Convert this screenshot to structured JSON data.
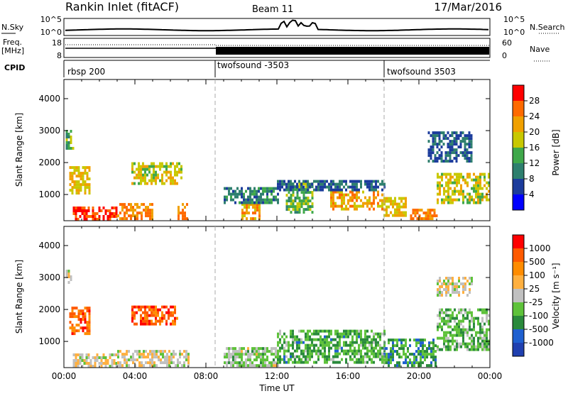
{
  "header": {
    "site": "Rankin Inlet (fitACF)",
    "beam": "Beam 11",
    "date": "17/Mar/2016"
  },
  "noise_panel": {
    "left_label": "N.Sky",
    "right_label": "N.Search",
    "ticks": [
      "10^5",
      "10^0"
    ]
  },
  "freq_panel": {
    "left_label": "Freq.",
    "left_unit": "[MHz]",
    "left_ticks": [
      "18",
      "8"
    ],
    "right_label": "Nave",
    "right_ticks": [
      "60",
      "0"
    ]
  },
  "cpid_panel": {
    "label": "CPID",
    "segments": [
      {
        "name": "rbsp 200",
        "start_hour": 0.0
      },
      {
        "name": "twofsound -3503",
        "start_hour": 8.5
      },
      {
        "name": "twofsound 3503",
        "start_hour": 18.0
      }
    ]
  },
  "colors": {
    "power_scale": [
      "#0000ff",
      "#1c3c9c",
      "#2e7f6e",
      "#3fa84a",
      "#c8c800",
      "#f0a000",
      "#ff6a00",
      "#ff0000"
    ],
    "velocity_scale": [
      "#2040b0",
      "#1f60d0",
      "#2a8a3c",
      "#5ec23a",
      "#c0c0c0",
      "#ffb040",
      "#ff8c00",
      "#ff5a00",
      "#ff0000"
    ]
  },
  "chart_data": [
    {
      "type": "heatmap",
      "title": "",
      "xlabel": "",
      "ylabel": "Slant Range [km]",
      "xlim": [
        0,
        24
      ],
      "ylim": [
        180,
        4600
      ],
      "yticks": [
        "1000",
        "2000",
        "3000",
        "4000"
      ],
      "colorbar_label": "Power [dB]",
      "colorbar_ticks": [
        "28",
        "24",
        "20",
        "16",
        "12",
        "8",
        "4"
      ],
      "colorbar_range": [
        0,
        32
      ],
      "regions": [
        {
          "x": [
            0.3,
            1.5
          ],
          "y": [
            1000,
            1800
          ],
          "value": 20
        },
        {
          "x": [
            0.1,
            0.5
          ],
          "y": [
            2400,
            3000
          ],
          "value": 14
        },
        {
          "x": [
            3.8,
            6.6
          ],
          "y": [
            1300,
            2000
          ],
          "value": 18
        },
        {
          "x": [
            0.5,
            3.0
          ],
          "y": [
            180,
            600
          ],
          "value": 28
        },
        {
          "x": [
            3.0,
            5.0
          ],
          "y": [
            200,
            700
          ],
          "value": 24
        },
        {
          "x": [
            6.4,
            7.0
          ],
          "y": [
            200,
            700
          ],
          "value": 24
        },
        {
          "x": [
            10.0,
            11.0
          ],
          "y": [
            200,
            700
          ],
          "value": 22
        },
        {
          "x": [
            12.5,
            14.0
          ],
          "y": [
            400,
            1300
          ],
          "value": 14
        },
        {
          "x": [
            15.0,
            18.0
          ],
          "y": [
            500,
            1100
          ],
          "value": 22
        },
        {
          "x": [
            18.0,
            19.3
          ],
          "y": [
            300,
            900
          ],
          "value": 20
        },
        {
          "x": [
            19.5,
            21.0
          ],
          "y": [
            200,
            500
          ],
          "value": 24
        },
        {
          "x": [
            21.0,
            24.0
          ],
          "y": [
            700,
            1600
          ],
          "value": 18
        },
        {
          "x": [
            9.0,
            12.0
          ],
          "y": [
            700,
            1200
          ],
          "value": 10
        },
        {
          "x": [
            12.0,
            18.0
          ],
          "y": [
            1100,
            1400
          ],
          "value": 8
        },
        {
          "x": [
            20.5,
            23.0
          ],
          "y": [
            2000,
            2900
          ],
          "value": 8
        }
      ]
    },
    {
      "type": "heatmap",
      "title": "",
      "xlabel": "Time UT",
      "ylabel": "Slant Range [km]",
      "xlim": [
        0,
        24
      ],
      "ylim": [
        180,
        4600
      ],
      "xticks": [
        "00:00",
        "04:00",
        "08:00",
        "12:00",
        "16:00",
        "20:00",
        "00:00"
      ],
      "yticks": [
        "1000",
        "2000",
        "3000",
        "4000"
      ],
      "colorbar_label": "Velocity [m s⁻¹]",
      "colorbar_ticks": [
        "1000",
        "500",
        "100",
        "25",
        "-25",
        "-100",
        "-500",
        "-1000"
      ],
      "colorbar_range": [
        -1200,
        1200
      ],
      "regions": [
        {
          "x": [
            0.3,
            1.5
          ],
          "y": [
            1200,
            2000
          ],
          "value": 700
        },
        {
          "x": [
            0.1,
            0.4
          ],
          "y": [
            2800,
            3200
          ],
          "value": 0
        },
        {
          "x": [
            3.8,
            6.4
          ],
          "y": [
            1500,
            2100
          ],
          "value": 800
        },
        {
          "x": [
            0.5,
            3.0
          ],
          "y": [
            180,
            600
          ],
          "value": 100
        },
        {
          "x": [
            3.0,
            7.0
          ],
          "y": [
            200,
            700
          ],
          "value": 60
        },
        {
          "x": [
            9.0,
            12.0
          ],
          "y": [
            200,
            800
          ],
          "value": -150
        },
        {
          "x": [
            12.0,
            18.0
          ],
          "y": [
            300,
            1300
          ],
          "value": -400
        },
        {
          "x": [
            18.0,
            21.0
          ],
          "y": [
            200,
            1000
          ],
          "value": -500
        },
        {
          "x": [
            21.0,
            24.0
          ],
          "y": [
            700,
            2000
          ],
          "value": -300
        },
        {
          "x": [
            21.0,
            23.0
          ],
          "y": [
            2400,
            3000
          ],
          "value": 0
        }
      ]
    }
  ]
}
